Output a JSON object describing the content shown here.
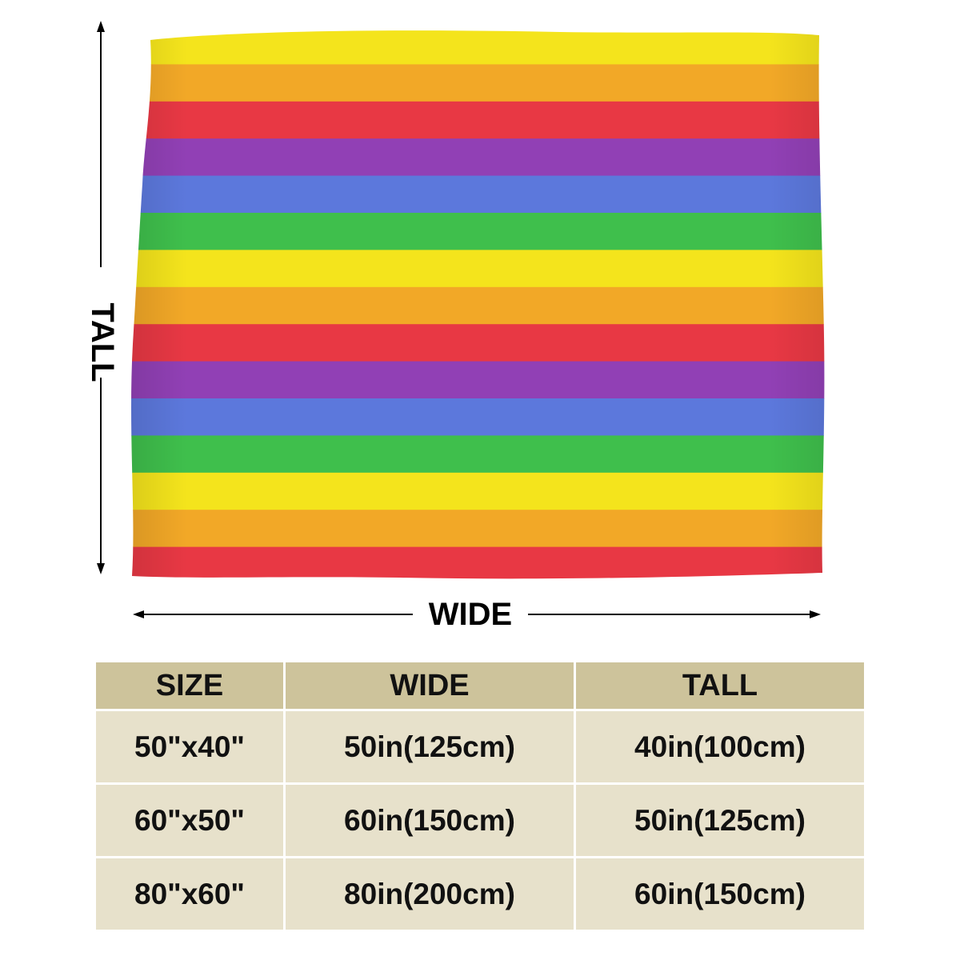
{
  "dimension_labels": {
    "tall": "TALL",
    "wide": "WIDE"
  },
  "blanket": {
    "stripe_colors": [
      "#f4e41c",
      "#f2a827",
      "#e83844",
      "#9140b5",
      "#5c78dc",
      "#3fbf4c",
      "#f4e41c",
      "#f2a827",
      "#e83844",
      "#9140b5",
      "#5c78dc",
      "#3fbf4c",
      "#f4e41c",
      "#f2a827",
      "#e83844"
    ]
  },
  "size_table": {
    "headers": [
      "SIZE",
      "WIDE",
      "TALL"
    ],
    "rows": [
      [
        "50\"x40\"",
        "50in(125cm)",
        "40in(100cm)"
      ],
      [
        "60\"x50\"",
        "60in(150cm)",
        "50in(125cm)"
      ],
      [
        "80\"x60\"",
        "80in(200cm)",
        "60in(150cm)"
      ]
    ],
    "header_color": "#cdc39b",
    "row_color": "#e7e1cb"
  }
}
